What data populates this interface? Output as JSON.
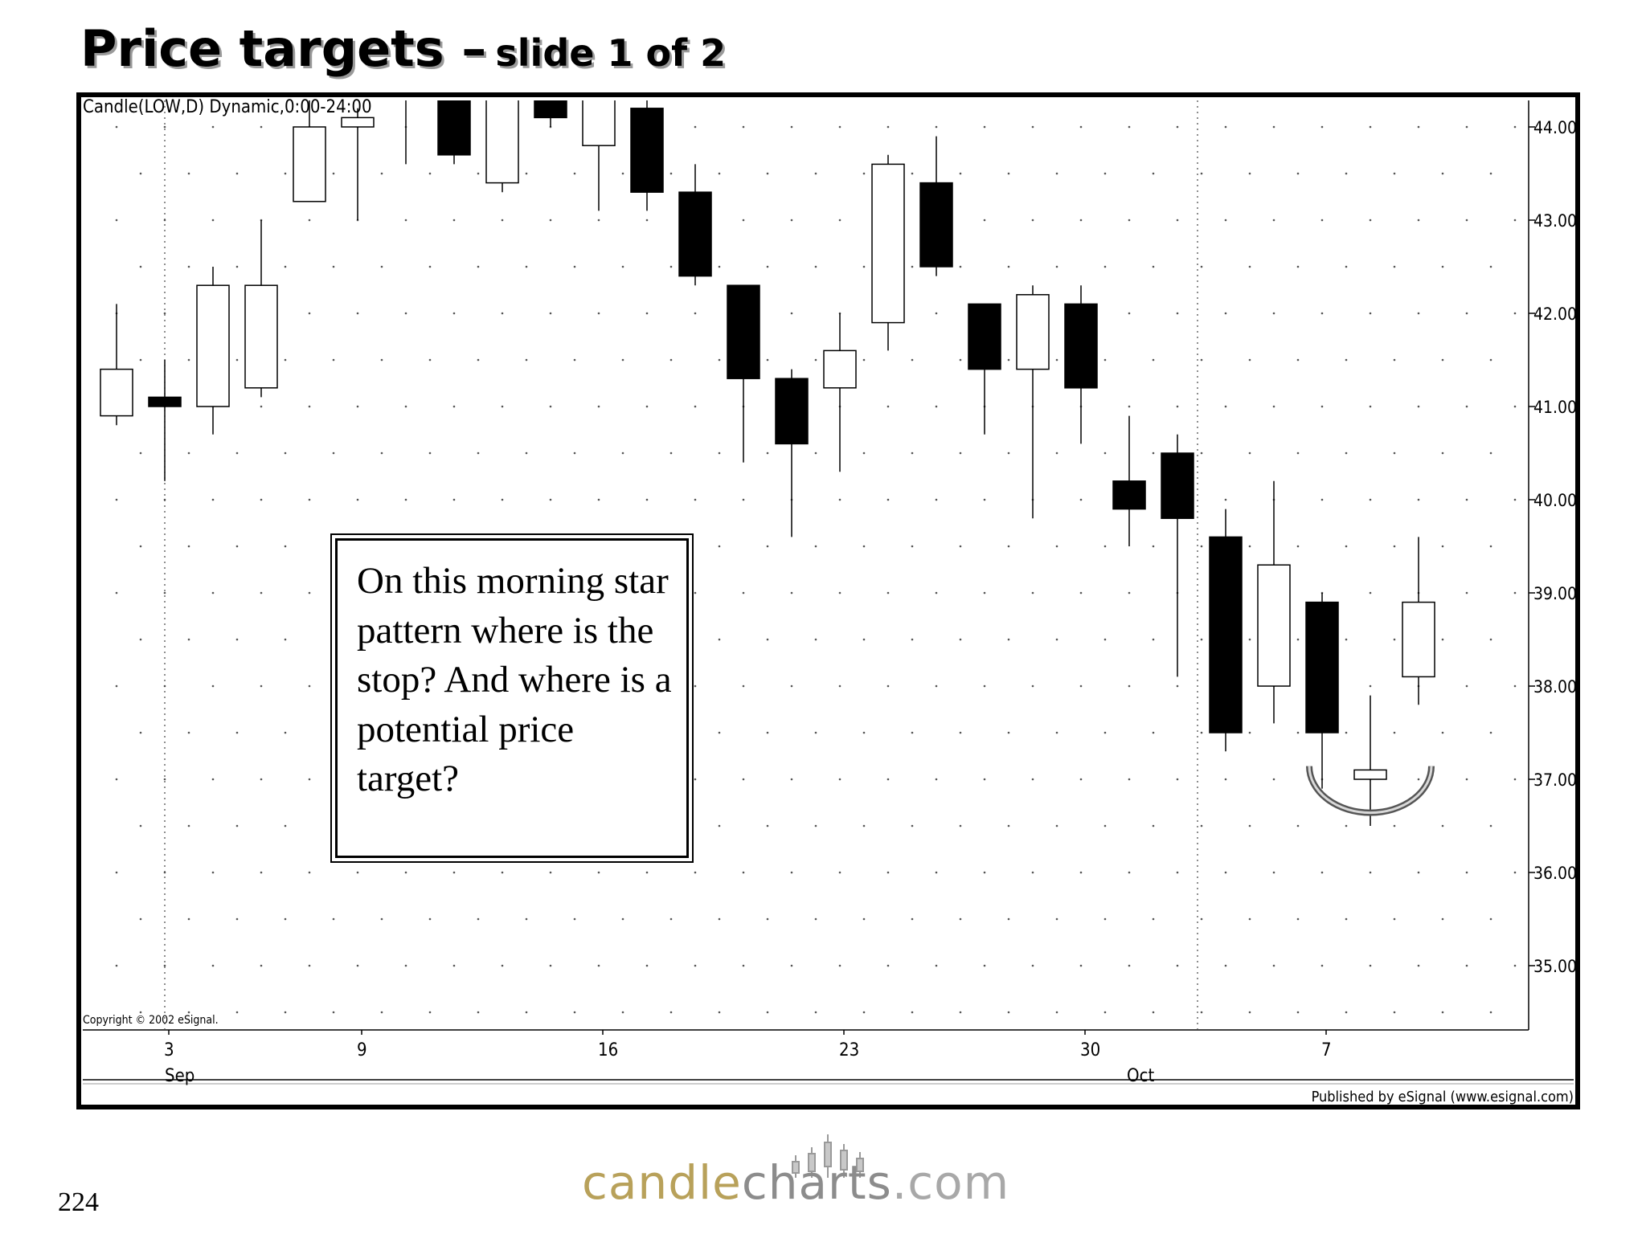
{
  "slide": {
    "title": "Price targets –",
    "subtitle": "slide 1 of 2",
    "page_number": "224",
    "logo": {
      "part1": "candle",
      "part2": "charts",
      "part3": ".com",
      "icon": "candlestick-logo-icon"
    }
  },
  "callout": {
    "text": "On this morning star pattern where is the stop? And where is a potential price target?"
  },
  "chart_data": {
    "type": "candlestick",
    "title": "Candle(LOW,D) Dynamic,0:00-24:00",
    "copyright": "Copyright © 2002 eSignal.",
    "publisher": "Published by eSignal (www.esignal.com)",
    "y_axis": {
      "side": "right",
      "ticks": [
        "44.00",
        "43.00",
        "42.00",
        "41.00",
        "40.00",
        "39.00",
        "38.00",
        "37.00",
        "36.00",
        "35.00"
      ],
      "range": [
        34.3,
        44.3
      ]
    },
    "x_axis": {
      "day_labels": [
        {
          "label": "3",
          "index": 1
        },
        {
          "label": "9",
          "index": 5
        },
        {
          "label": "16",
          "index": 10
        },
        {
          "label": "23",
          "index": 15
        },
        {
          "label": "30",
          "index": 20
        },
        {
          "label": "7",
          "index": 25
        }
      ],
      "month_labels": [
        {
          "label": "Sep",
          "index": 1
        },
        {
          "label": "Oct",
          "index": 21
        }
      ],
      "month_separators": [
        1,
        21
      ]
    },
    "grid": "dotted",
    "candles": [
      {
        "open": 40.9,
        "high": 42.1,
        "low": 40.8,
        "close": 41.4
      },
      {
        "open": 41.1,
        "high": 41.5,
        "low": 40.2,
        "close": 41.0
      },
      {
        "open": 41.0,
        "high": 42.5,
        "low": 40.7,
        "close": 42.3
      },
      {
        "open": 41.2,
        "high": 43.0,
        "low": 41.1,
        "close": 42.3
      },
      {
        "open": 43.2,
        "high": 44.5,
        "low": 43.2,
        "close": 44.0
      },
      {
        "open": 44.0,
        "high": 44.2,
        "low": 43.0,
        "close": 44.1
      },
      {
        "open": 44.5,
        "high": 44.8,
        "low": 43.6,
        "close": 44.7
      },
      {
        "open": 44.5,
        "high": 44.7,
        "low": 43.6,
        "close": 43.7
      },
      {
        "open": 43.4,
        "high": 44.8,
        "low": 43.3,
        "close": 44.5
      },
      {
        "open": 44.6,
        "high": 44.8,
        "low": 44.0,
        "close": 44.1
      },
      {
        "open": 43.8,
        "high": 44.7,
        "low": 43.1,
        "close": 44.6
      },
      {
        "open": 44.2,
        "high": 44.3,
        "low": 43.1,
        "close": 43.3
      },
      {
        "open": 43.3,
        "high": 43.6,
        "low": 42.3,
        "close": 42.4
      },
      {
        "open": 42.3,
        "high": 42.3,
        "low": 40.4,
        "close": 41.3
      },
      {
        "open": 41.3,
        "high": 41.4,
        "low": 39.6,
        "close": 40.6
      },
      {
        "open": 41.2,
        "high": 42.0,
        "low": 40.3,
        "close": 41.6
      },
      {
        "open": 41.9,
        "high": 43.7,
        "low": 41.6,
        "close": 43.6
      },
      {
        "open": 43.4,
        "high": 43.9,
        "low": 42.4,
        "close": 42.5
      },
      {
        "open": 42.1,
        "high": 42.1,
        "low": 40.7,
        "close": 41.4
      },
      {
        "open": 41.4,
        "high": 42.3,
        "low": 39.8,
        "close": 42.2
      },
      {
        "open": 42.1,
        "high": 42.3,
        "low": 40.6,
        "close": 41.2
      },
      {
        "open": 40.2,
        "high": 40.9,
        "low": 39.5,
        "close": 39.9
      },
      {
        "open": 40.5,
        "high": 40.7,
        "low": 38.1,
        "close": 39.8
      },
      {
        "open": 39.6,
        "high": 39.9,
        "low": 37.3,
        "close": 37.5
      },
      {
        "open": 38.0,
        "high": 40.2,
        "low": 37.6,
        "close": 39.3
      },
      {
        "open": 38.9,
        "high": 39.0,
        "low": 36.9,
        "close": 37.5
      },
      {
        "open": 37.0,
        "high": 37.9,
        "low": 36.5,
        "close": 37.1
      },
      {
        "open": 38.1,
        "high": 39.6,
        "low": 37.8,
        "close": 38.9
      }
    ],
    "annotations": [
      {
        "type": "arc-highlight",
        "around_index": 26
      }
    ],
    "legend": "none"
  }
}
